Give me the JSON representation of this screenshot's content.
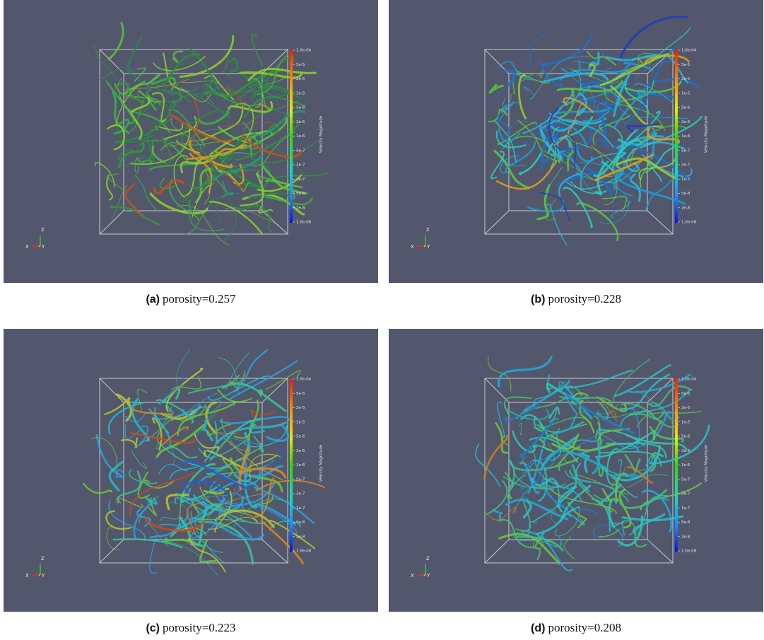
{
  "colorbar": {
    "title": "Velocity Magnitude",
    "labels": [
      "1.0e-04",
      "5e-5",
      "2e-5",
      "1e-5",
      "5e-6",
      "2e-6",
      "1e-6",
      "5e-7",
      "2e-7",
      "1e-7",
      "5e-8",
      "2e-8",
      "1.0e-08"
    ]
  },
  "axes": {
    "x": "X",
    "y": "Y",
    "z": "Z"
  },
  "panels": [
    {
      "label": "(a)",
      "caption": "porosity=0.257"
    },
    {
      "label": "(b)",
      "caption": "porosity=0.228"
    },
    {
      "label": "(c)",
      "caption": "porosity=0.223"
    },
    {
      "label": "(d)",
      "caption": "porosity=0.208"
    }
  ]
}
